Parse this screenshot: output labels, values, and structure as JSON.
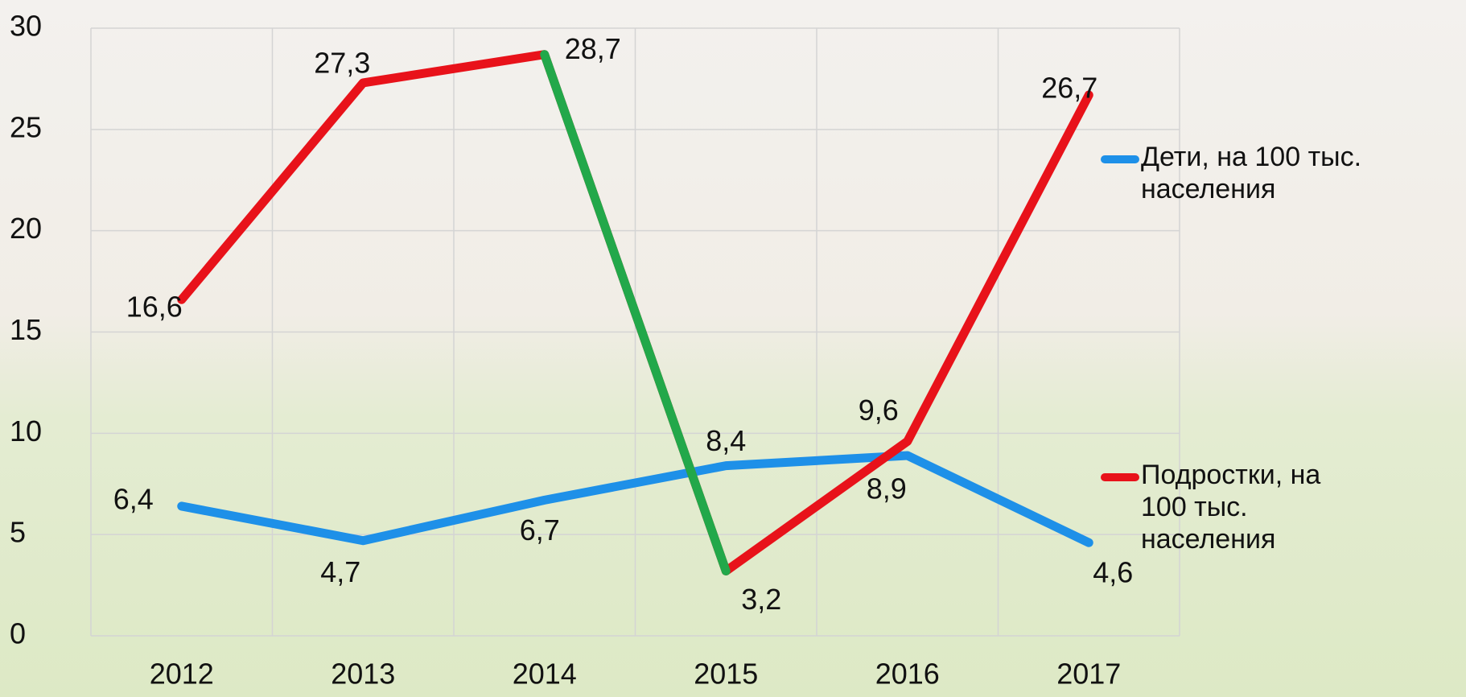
{
  "chart_data": {
    "type": "line",
    "categories": [
      "2012",
      "2013",
      "2014",
      "2015",
      "2016",
      "2017"
    ],
    "series": [
      {
        "name": "Дети, на 100 тыс. населения",
        "color": "#1e90e8",
        "values": [
          6.4,
          4.7,
          6.7,
          8.4,
          8.9,
          4.6
        ],
        "value_labels": [
          "6,4",
          "4,7",
          "6,7",
          "8,4",
          "8,9",
          "4,6"
        ]
      },
      {
        "name": "Подростки, на 100 тыс. населения",
        "color": "#e8121a",
        "segment_colors": [
          "#e8121a",
          "#e8121a",
          "#22a84a",
          "#e8121a",
          "#e8121a"
        ],
        "values": [
          16.6,
          27.3,
          28.7,
          3.2,
          9.6,
          26.7
        ],
        "value_labels": [
          "16,6",
          "27,3",
          "28,7",
          "3,2",
          "9,6",
          "26,7"
        ]
      }
    ],
    "ylim": [
      0,
      30
    ],
    "yticks": [
      0,
      5,
      10,
      15,
      20,
      25,
      30
    ],
    "grid": true,
    "legend": "right"
  }
}
